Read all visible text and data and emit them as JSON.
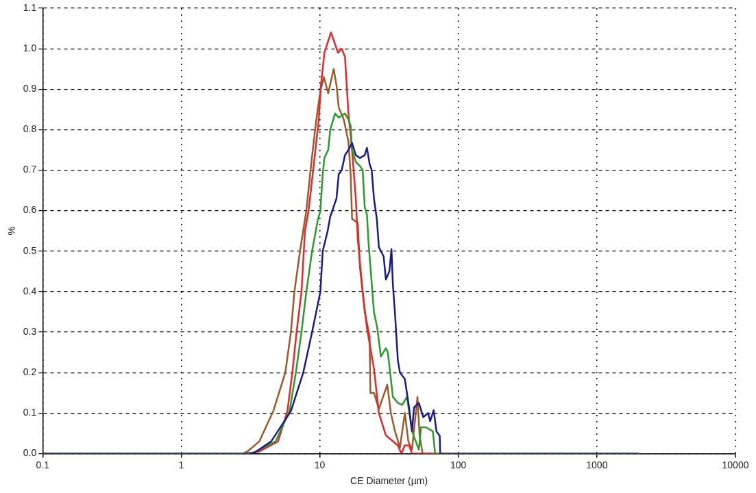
{
  "chart_data": {
    "type": "line",
    "xlabel": "CE Diameter (µm)",
    "ylabel": "%",
    "log": "x",
    "grid": true,
    "legend": false,
    "xlim": [
      0.1,
      10000
    ],
    "xticks": [
      0.1,
      1,
      10,
      100,
      1000,
      10000
    ],
    "ylim": [
      0,
      1.1
    ],
    "yticks": [
      {
        "value": 0,
        "label": "0.0"
      },
      0.1,
      0.2,
      0.3,
      0.4,
      0.5,
      0.6,
      0.7,
      0.8,
      0.9,
      {
        "value": 1,
        "label": "1.0"
      },
      1.1
    ],
    "series": [
      {
        "color": "#1a1a8c",
        "x": [
          0.1,
          3.2,
          3.37,
          4.46,
          6.19,
          7.6,
          8.8,
          10.1,
          10.5,
          11.4,
          11.9,
          13.2,
          13.7,
          14.4,
          15.2,
          16.1,
          17.1,
          18.2,
          19.5,
          21.1,
          21.9,
          22.9,
          23.7,
          24.6,
          25.8,
          26.7,
          28.9,
          30,
          31.8,
          32.9,
          33.7,
          34.9,
          36.6,
          37.9,
          41.1,
          44.1,
          46.3,
          47.9,
          51.9,
          55.8,
          60.5,
          62.6,
          66.4,
          69.5,
          73.4,
          74,
          2000
        ],
        "values": [
          0,
          0,
          0.002,
          0.03,
          0.105,
          0.2,
          0.3,
          0.4,
          0.5,
          0.55,
          0.585,
          0.63,
          0.69,
          0.7,
          0.737,
          0.75,
          0.767,
          0.737,
          0.73,
          0.737,
          0.755,
          0.715,
          0.7,
          0.63,
          0.58,
          0.51,
          0.487,
          0.43,
          0.45,
          0.505,
          0.417,
          0.347,
          0.23,
          0.2,
          0.184,
          0.114,
          0.055,
          0.114,
          0.125,
          0.09,
          0.1,
          0.08,
          0.107,
          0.055,
          0.044,
          0,
          0
        ]
      },
      {
        "color": "#2a9a2a",
        "x": [
          0.1,
          3,
          3.37,
          4.8,
          6.05,
          6.72,
          7.38,
          8,
          8.8,
          9.65,
          10.1,
          10.5,
          10.8,
          11.5,
          11.9,
          12.9,
          13.7,
          15.2,
          16.1,
          16.7,
          17.1,
          18.2,
          19.5,
          20.4,
          21.1,
          21.9,
          22.5,
          24.6,
          26,
          27.6,
          30,
          31,
          33.7,
          36.6,
          39.3,
          42.6,
          46.3,
          51.9,
          53.8,
          58.3,
          65.5,
          68,
          2000
        ],
        "values": [
          0,
          0,
          0.003,
          0.03,
          0.105,
          0.2,
          0.3,
          0.4,
          0.5,
          0.575,
          0.6,
          0.69,
          0.73,
          0.75,
          0.8,
          0.84,
          0.83,
          0.84,
          0.825,
          0.81,
          0.75,
          0.72,
          0.71,
          0.7,
          0.61,
          0.59,
          0.52,
          0.35,
          0.31,
          0.24,
          0.26,
          0.25,
          0.14,
          0.125,
          0.12,
          0.14,
          0.055,
          0.01,
          0.065,
          0.065,
          0.055,
          0,
          0
        ]
      },
      {
        "color": "#e8262b",
        "x": [
          0.1,
          2.9,
          3.66,
          5,
          5.84,
          6.34,
          6.8,
          7.38,
          7.82,
          8.3,
          9.1,
          9.8,
          10.2,
          10.8,
          12.05,
          13.55,
          14.4,
          15.2,
          16.1,
          17.1,
          18.2,
          18.8,
          20.4,
          21.9,
          24.6,
          26.7,
          30,
          36.6,
          38.8,
          41.1,
          44.1,
          46.3,
          2000
        ],
        "values": [
          0,
          0,
          0.005,
          0.03,
          0.105,
          0.2,
          0.3,
          0.4,
          0.55,
          0.6,
          0.72,
          0.82,
          0.91,
          0.99,
          1.04,
          0.99,
          1,
          0.98,
          0.84,
          0.75,
          0.63,
          0.53,
          0.4,
          0.31,
          0.21,
          0.1,
          0.045,
          0.02,
          0,
          0.02,
          0.02,
          0,
          0
        ]
      },
      {
        "color": "#9c5a2a",
        "x": [
          0.1,
          2.8,
          3,
          3.66,
          4.62,
          5.64,
          6.19,
          6.56,
          7.2,
          8,
          8.7,
          9.4,
          10.1,
          10.7,
          11.5,
          12.6,
          13.2,
          13.7,
          14.9,
          16.1,
          16.7,
          17.1,
          18.8,
          19.5,
          21.1,
          22.9,
          23.2,
          24.6,
          26.7,
          30.7,
          32.6,
          34.9,
          37.9,
          41.1,
          43.6,
          46.3,
          50.7,
          52.5,
          55.2,
          2000
        ],
        "values": [
          0,
          0,
          0.005,
          0.03,
          0.105,
          0.2,
          0.3,
          0.4,
          0.5,
          0.6,
          0.72,
          0.82,
          0.895,
          0.93,
          0.89,
          0.95,
          0.91,
          0.855,
          0.825,
          0.77,
          0.69,
          0.58,
          0.57,
          0.46,
          0.35,
          0.29,
          0.15,
          0.15,
          0.11,
          0.17,
          0.1,
          0.055,
          0.015,
          0.1,
          0.03,
          0.01,
          0.14,
          0.045,
          0,
          0
        ]
      }
    ]
  }
}
